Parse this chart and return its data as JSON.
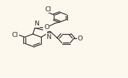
{
  "bg_color": "#fdf8ee",
  "line_color": "#2a2a2a",
  "lw": 0.85,
  "fs": 6.8,
  "figsize": [
    1.81,
    1.1
  ],
  "dpi": 100,
  "xlim": [
    0.0,
    1.0
  ],
  "ylim": [
    0.05,
    0.98
  ]
}
